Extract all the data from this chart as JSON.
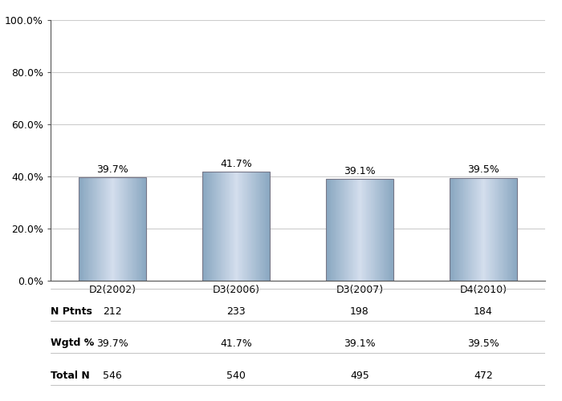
{
  "categories": [
    "D2(2002)",
    "D3(2006)",
    "D3(2007)",
    "D4(2010)"
  ],
  "values": [
    39.7,
    41.7,
    39.1,
    39.5
  ],
  "ylim": [
    0,
    100
  ],
  "yticks": [
    0,
    20,
    40,
    60,
    80,
    100
  ],
  "ytick_labels": [
    "0.0%",
    "20.0%",
    "40.0%",
    "60.0%",
    "80.0%",
    "100.0%"
  ],
  "value_labels": [
    "39.7%",
    "41.7%",
    "39.1%",
    "39.5%"
  ],
  "table_rows": [
    {
      "label": "N Ptnts",
      "values": [
        "212",
        "233",
        "198",
        "184"
      ]
    },
    {
      "label": "Wgtd %",
      "values": [
        "39.7%",
        "41.7%",
        "39.1%",
        "39.5%"
      ]
    },
    {
      "label": "Total N",
      "values": [
        "546",
        "540",
        "495",
        "472"
      ]
    }
  ],
  "bar_width": 0.55,
  "background_color": "#ffffff",
  "grid_color": "#cccccc",
  "label_fontsize": 9,
  "tick_fontsize": 9,
  "table_fontsize": 9
}
